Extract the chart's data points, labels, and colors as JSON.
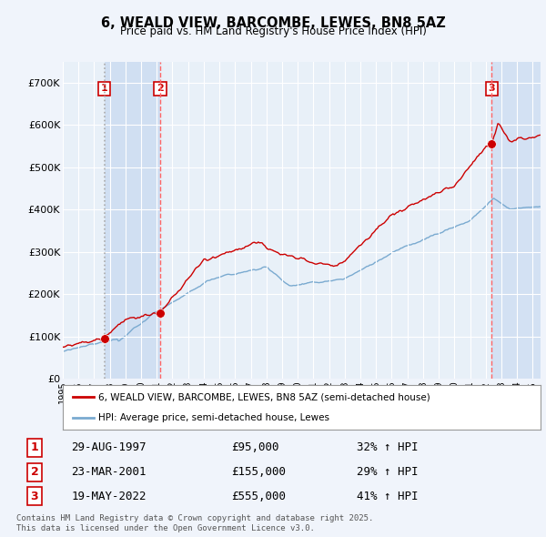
{
  "title": "6, WEALD VIEW, BARCOMBE, LEWES, BN8 5AZ",
  "subtitle": "Price paid vs. HM Land Registry's House Price Index (HPI)",
  "background_color": "#f0f4fb",
  "plot_background": "#dde8f5",
  "ylabel": "",
  "ylim": [
    0,
    750000
  ],
  "yticks": [
    0,
    100000,
    200000,
    300000,
    400000,
    500000,
    600000,
    700000
  ],
  "ytick_labels": [
    "£0",
    "£100K",
    "£200K",
    "£300K",
    "£400K",
    "£500K",
    "£600K",
    "£700K"
  ],
  "sale_year_floats": [
    1997.66,
    2001.22,
    2022.38
  ],
  "sale_prices": [
    95000,
    155000,
    555000
  ],
  "sale_labels": [
    "1",
    "2",
    "3"
  ],
  "sale_label_1": "29-AUG-1997",
  "sale_price_1": "£95,000",
  "sale_hpi_1": "32% ↑ HPI",
  "sale_label_2": "23-MAR-2001",
  "sale_price_2": "£155,000",
  "sale_hpi_2": "29% ↑ HPI",
  "sale_label_3": "19-MAY-2022",
  "sale_price_3": "£555,000",
  "sale_hpi_3": "41% ↑ HPI",
  "legend_line1": "6, WEALD VIEW, BARCOMBE, LEWES, BN8 5AZ (semi-detached house)",
  "legend_line2": "HPI: Average price, semi-detached house, Lewes",
  "footer": "Contains HM Land Registry data © Crown copyright and database right 2025.\nThis data is licensed under the Open Government Licence v3.0.",
  "line_color_property": "#cc0000",
  "line_color_hpi": "#7aaad0",
  "vline_color_dashed": "#ff6666",
  "vline_color_dotted": "#aaaaaa",
  "dot_color": "#cc0000",
  "shade_color": "#c8d8ee",
  "x_start_year": 1995,
  "x_end_year": 2025
}
